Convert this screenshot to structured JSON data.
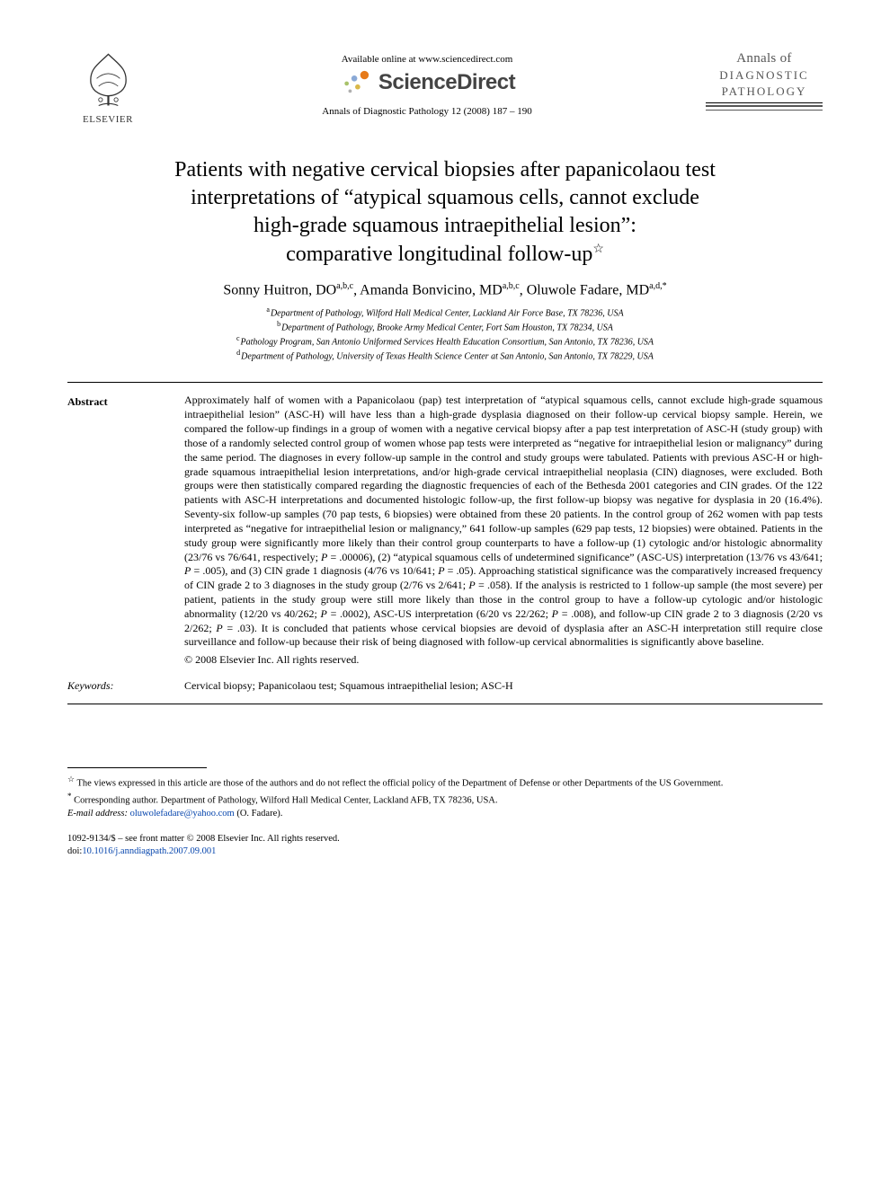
{
  "header": {
    "available_text": "Available online at www.sciencedirect.com",
    "sd_word": "ScienceDirect",
    "journal_ref": "Annals of Diagnostic Pathology 12 (2008) 187 – 190",
    "elsevier_label": "ELSEVIER",
    "journal_name_line1": "Annals of",
    "journal_name_line2": "DIAGNOSTIC",
    "journal_name_line3": "PATHOLOGY"
  },
  "title_lines": [
    "Patients with negative cervical biopsies after papanicolaou test",
    "interpretations of “atypical squamous cells, cannot exclude",
    "high-grade squamous intraepithelial lesion”:",
    "comparative longitudinal follow-up"
  ],
  "title_star": "☆",
  "authors_html": "Sonny Huitron, DO<sup>a,b,c</sup>, Amanda Bonvicino, MD<sup>a,b,c</sup>, Oluwole Fadare, MD<sup>a,d,*</sup>",
  "affiliations": [
    {
      "sup": "a",
      "text": "Department of Pathology, Wilford Hall Medical Center, Lackland Air Force Base, TX 78236, USA"
    },
    {
      "sup": "b",
      "text": "Department of Pathology, Brooke Army Medical Center, Fort Sam Houston, TX 78234, USA"
    },
    {
      "sup": "c",
      "text": "Pathology Program, San Antonio Uniformed Services Health Education Consortium, San Antonio, TX 78236, USA"
    },
    {
      "sup": "d",
      "text": "Department of Pathology, University of Texas Health Science Center at San Antonio, San Antonio, TX 78229, USA"
    }
  ],
  "abstract": {
    "label": "Abstract",
    "body": "Approximately half of women with a Papanicolaou (pap) test interpretation of “atypical squamous cells, cannot exclude high-grade squamous intraepithelial lesion” (ASC-H) will have less than a high-grade dysplasia diagnosed on their follow-up cervical biopsy sample. Herein, we compared the follow-up findings in a group of women with a negative cervical biopsy after a pap test interpretation of ASC-H (study group) with those of a randomly selected control group of women whose pap tests were interpreted as “negative for intraepithelial lesion or malignancy” during the same period. The diagnoses in every follow-up sample in the control and study groups were tabulated. Patients with previous ASC-H or high-grade squamous intraepithelial lesion interpretations, and/or high-grade cervical intraepithelial neoplasia (CIN) diagnoses, were excluded. Both groups were then statistically compared regarding the diagnostic frequencies of each of the Bethesda 2001 categories and CIN grades. Of the 122 patients with ASC-H interpretations and documented histologic follow-up, the first follow-up biopsy was negative for dysplasia in 20 (16.4%). Seventy-six follow-up samples (70 pap tests, 6 biopsies) were obtained from these 20 patients. In the control group of 262 women with pap tests interpreted as “negative for intraepithelial lesion or malignancy,” 641 follow-up samples (629 pap tests, 12 biopsies) were obtained. Patients in the study group were significantly more likely than their control group counterparts to have a follow-up (1) cytologic and/or histologic abnormality (23/76 vs 76/641, respectively; <span class=\"ital\">P</span> = .00006), (2) “atypical squamous cells of undetermined significance” (ASC-US) interpretation (13/76 vs 43/641; <span class=\"ital\">P</span> = .005), and (3) CIN grade 1 diagnosis (4/76 vs 10/641; <span class=\"ital\">P</span> = .05). Approaching statistical significance was the comparatively increased frequency of CIN grade 2 to 3 diagnoses in the study group (2/76 vs 2/641; <span class=\"ital\">P</span> = .058). If the analysis is restricted to 1 follow-up sample (the most severe) per patient, patients in the study group were still more likely than those in the control group to have a follow-up cytologic and/or histologic abnormality (12/20 vs 40/262; <span class=\"ital\">P</span> = .0002), ASC-US interpretation (6/20 vs 22/262; <span class=\"ital\">P</span> = .008), and follow-up CIN grade 2 to 3 diagnosis (2/20 vs 2/262; <span class=\"ital\">P</span> = .03). It is concluded that patients whose cervical biopsies are devoid of dysplasia after an ASC-H interpretation still require close surveillance and follow-up because their risk of being diagnosed with follow-up cervical abnormalities is significantly above baseline.",
    "copyright": "© 2008 Elsevier Inc. All rights reserved."
  },
  "keywords": {
    "label": "Keywords:",
    "text": "Cervical biopsy; Papanicolaou test; Squamous intraepithelial lesion; ASC-H"
  },
  "footnotes": {
    "disclaimer": "The views expressed in this article are those of the authors and do not reflect the official policy of the Department of Defense or other Departments of the US Government.",
    "corresponding": "Corresponding author. Department of Pathology, Wilford Hall Medical Center, Lackland AFB, TX 78236, USA.",
    "email_label": "E-mail address:",
    "email": "oluwolefadare@yahoo.com",
    "email_suffix": "(O. Fadare)."
  },
  "bottom": {
    "issn_line": "1092-9134/$ – see front matter © 2008 Elsevier Inc. All rights reserved.",
    "doi_label": "doi:",
    "doi": "10.1016/j.anndiagpath.2007.09.001"
  },
  "colors": {
    "link": "#0645ad",
    "text": "#000000",
    "background": "#ffffff",
    "elsevier_orange": "#e67a1a",
    "sd_gray": "#444444"
  }
}
